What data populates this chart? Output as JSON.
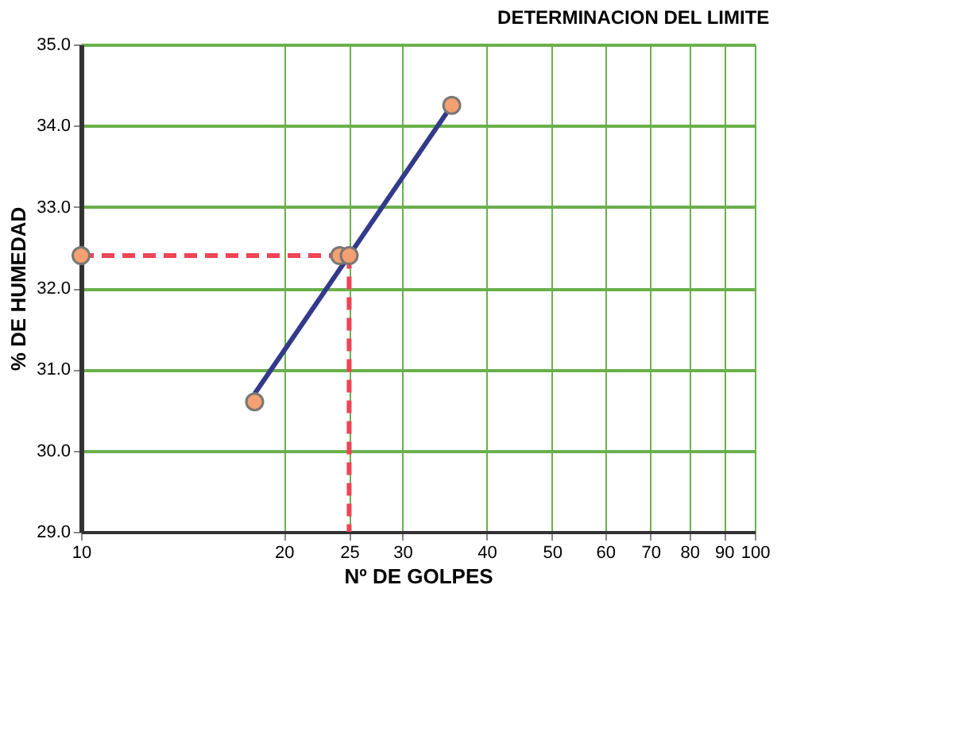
{
  "chart_data": {
    "type": "scatter",
    "title": "DETERMINACION  DEL  LIMITE",
    "xlabel": "Nº DE GOLPES",
    "ylabel": "% DE HUMEDAD",
    "log": "x",
    "xlim": [
      10,
      100
    ],
    "xticks": [
      10,
      20,
      25,
      30,
      40,
      50,
      60,
      70,
      80,
      90,
      100
    ],
    "ylim": [
      29,
      35
    ],
    "yticks": [
      {
        "value": 29,
        "label": "29.0"
      },
      {
        "value": 30,
        "label": "30.0"
      },
      {
        "value": 31,
        "label": "31.0"
      },
      {
        "value": 32,
        "label": "32.0"
      },
      {
        "value": 33,
        "label": "33.0"
      },
      {
        "value": 34,
        "label": "34.0"
      },
      {
        "value": 35,
        "label": "35.0"
      }
    ],
    "grid": true,
    "series": [
      {
        "type": "line",
        "color": "#ee4455",
        "line_style": "dashed",
        "marker": "none",
        "x": [
          10,
          25,
          25
        ],
        "values": [
          32.4,
          32.4,
          29
        ]
      },
      {
        "type": "line",
        "color": "#333a8a",
        "line_style": "solid",
        "marker": "none",
        "x": [
          18.1,
          35.5
        ],
        "values": [
          30.7,
          34.25
        ]
      },
      {
        "color": "#f4a070",
        "marker": "circle",
        "x": [
          18.1,
          24.2,
          35.5
        ],
        "values": [
          30.6,
          32.4,
          34.25
        ]
      },
      {
        "color": "#f4a070",
        "marker": "circle",
        "x": [
          10,
          25
        ],
        "values": [
          32.4,
          32.4
        ]
      }
    ]
  }
}
